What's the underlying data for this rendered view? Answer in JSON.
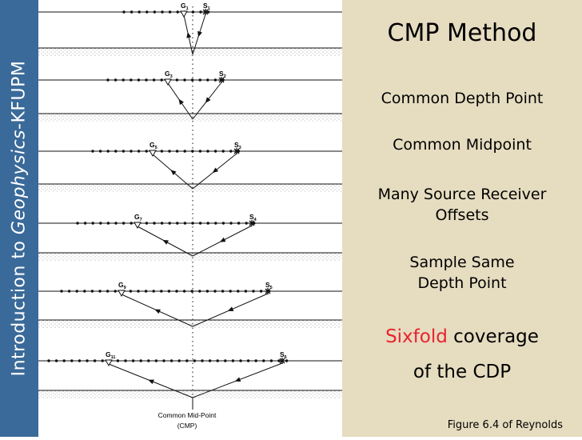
{
  "sidebar": {
    "prefix": "Introduction to ",
    "emphasis": "Geophysics",
    "suffix": "-KFUPM"
  },
  "panel": {
    "title": "CMP Method",
    "line1": "Common Depth Point",
    "line2": "Common Midpoint",
    "line3a": "Many Source Receiver",
    "line3b": "Offsets",
    "line4a": "Sample Same",
    "line4b": "Depth Point",
    "coverage_highlight": "Sixfold",
    "coverage_rest": " coverage",
    "coverage_line2": "of the CDP",
    "caption": "Figure 6.4 of Reynolds",
    "highlight_color": "#e8232f"
  },
  "figure": {
    "pairs": [
      {
        "g_letter": "G",
        "g_sub": "1",
        "s_letter": "S",
        "s_sub": "1"
      },
      {
        "g_letter": "G",
        "g_sub": "3",
        "s_letter": "S",
        "s_sub": "2"
      },
      {
        "g_letter": "G",
        "g_sub": "5",
        "s_letter": "S",
        "s_sub": "3"
      },
      {
        "g_letter": "G",
        "g_sub": "7",
        "s_letter": "S",
        "s_sub": "4"
      },
      {
        "g_letter": "G",
        "g_sub": "9",
        "s_letter": "S",
        "s_sub": "5"
      },
      {
        "g_letter": "G",
        "g_sub": "11",
        "s_letter": "S",
        "s_sub": "6"
      }
    ],
    "cmp_label": "Common Mid-Point",
    "cmp_abbrev": "(CMP)"
  }
}
